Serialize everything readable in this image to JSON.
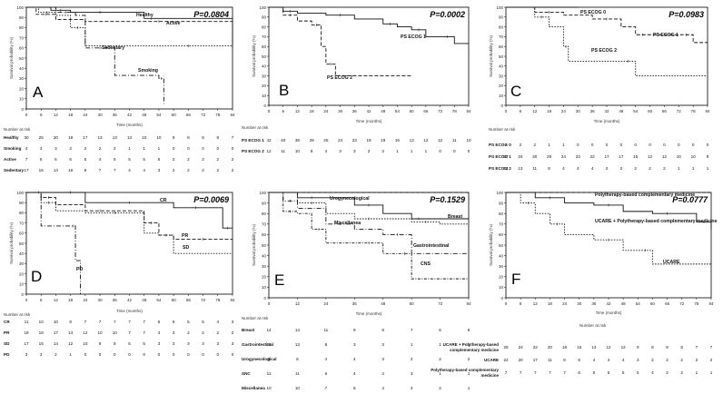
{
  "chart_data": [
    {
      "type": "line",
      "panel": "A",
      "pvalue": "P=0.0804",
      "xlabel": "Time (months)",
      "ylabel": "Survival probability (%)",
      "xlim": [
        0,
        84
      ],
      "ylim": [
        0,
        100
      ],
      "xticks": [
        0,
        6,
        12,
        18,
        24,
        30,
        36,
        42,
        48,
        54,
        60,
        66,
        72,
        78,
        84
      ],
      "yticks": [
        0,
        10,
        20,
        30,
        40,
        50,
        60,
        70,
        80,
        90,
        100
      ],
      "series": [
        {
          "name": "Healthy",
          "style": "solid",
          "x": [
            0,
            10,
            18,
            24,
            36,
            48,
            54,
            84
          ],
          "y": [
            100,
            97,
            95,
            95,
            95,
            89,
            89,
            60
          ]
        },
        {
          "name": "Active",
          "style": "dash",
          "x": [
            0,
            4,
            12,
            24,
            84
          ],
          "y": [
            100,
            93,
            88,
            86,
            86
          ]
        },
        {
          "name": "Sedentary",
          "style": "dot",
          "x": [
            0,
            5,
            12,
            18,
            24,
            48,
            84
          ],
          "y": [
            100,
            95,
            92,
            80,
            62,
            62,
            61
          ]
        },
        {
          "name": "Smoking",
          "style": "dashdot",
          "x": [
            0,
            12,
            20,
            24,
            36,
            54,
            56
          ],
          "y": [
            100,
            95,
            92,
            60,
            33,
            30,
            5
          ]
        }
      ],
      "risk_title": "Number at risk",
      "risk_rows": [
        {
          "label": "Healthy",
          "values": [
            "30",
            "25",
            "20",
            "19",
            "17",
            "13",
            "13",
            "13",
            "10",
            "10",
            "8",
            "8",
            "8",
            "8",
            "7"
          ]
        },
        {
          "label": "Smoking",
          "values": [
            "4",
            "3",
            "3",
            "2",
            "2",
            "2",
            "2",
            "1",
            "1",
            "1",
            "0",
            "0",
            "0",
            "0",
            "0"
          ]
        },
        {
          "label": "Active",
          "values": [
            "7",
            "6",
            "6",
            "6",
            "5",
            "4",
            "5",
            "5",
            "5",
            "5",
            "3",
            "2",
            "2",
            "2",
            "2"
          ]
        },
        {
          "label": "Sedentary",
          "values": [
            "17",
            "16",
            "14",
            "16",
            "8",
            "7",
            "7",
            "4",
            "4",
            "3",
            "2",
            "2",
            "2",
            "2",
            "2"
          ]
        }
      ]
    },
    {
      "type": "line",
      "panel": "B",
      "pvalue": "P=0.0002",
      "xlabel": "Time (months)",
      "ylabel": "Survival probability (%)",
      "xlim": [
        0,
        84
      ],
      "ylim": [
        0,
        100
      ],
      "xticks": [
        0,
        6,
        12,
        18,
        24,
        30,
        36,
        42,
        48,
        54,
        60,
        66,
        72,
        78,
        84
      ],
      "yticks": [
        0,
        10,
        20,
        30,
        40,
        50,
        60,
        70,
        80,
        90,
        100
      ],
      "series": [
        {
          "name": "PS ECOG 1",
          "style": "solid",
          "x": [
            0,
            6,
            12,
            24,
            36,
            48,
            54,
            60,
            66,
            72,
            78,
            84
          ],
          "y": [
            100,
            96,
            94,
            92,
            88,
            83,
            80,
            77,
            70,
            70,
            63,
            63
          ]
        },
        {
          "name": "PS ECOG 2",
          "style": "dash",
          "x": [
            0,
            6,
            12,
            18,
            22,
            24,
            28,
            60
          ],
          "y": [
            100,
            92,
            86,
            82,
            60,
            42,
            30,
            30
          ]
        }
      ],
      "risk_title": "Number at risk",
      "risk_rows": [
        {
          "label": "PS ECOG 1",
          "values": [
            "42",
            "40",
            "36",
            "29",
            "25",
            "24",
            "23",
            "19",
            "19",
            "16",
            "13",
            "12",
            "12",
            "11",
            "10"
          ]
        },
        {
          "label": "PS ECOG 2",
          "values": [
            "12",
            "11",
            "10",
            "8",
            "4",
            "3",
            "3",
            "2",
            "2",
            "1",
            "1",
            "1",
            "0",
            "0",
            "0"
          ]
        }
      ]
    },
    {
      "type": "line",
      "panel": "C",
      "pvalue": "P=0.0983",
      "xlabel": "Time (months)",
      "ylabel": "Survival probability (%)",
      "xlim": [
        0,
        84
      ],
      "ylim": [
        0,
        100
      ],
      "xticks": [
        0,
        6,
        12,
        18,
        24,
        30,
        36,
        42,
        48,
        54,
        60,
        66,
        72,
        78,
        84
      ],
      "yticks": [
        0,
        10,
        20,
        30,
        40,
        50,
        60,
        70,
        80,
        90,
        100
      ],
      "series": [
        {
          "name": "PS ECOG 0",
          "style": "solid",
          "x": [
            0,
            30
          ],
          "y": [
            100,
            100
          ]
        },
        {
          "name": "PS ECOG 1",
          "style": "dash",
          "x": [
            0,
            12,
            24,
            36,
            48,
            54,
            60,
            72,
            78,
            84
          ],
          "y": [
            100,
            95,
            92,
            88,
            80,
            72,
            72,
            72,
            64,
            64
          ]
        },
        {
          "name": "PS ECOG 2",
          "style": "dot",
          "x": [
            0,
            12,
            18,
            24,
            26,
            48,
            54,
            84
          ],
          "y": [
            100,
            90,
            80,
            60,
            45,
            45,
            30,
            30
          ]
        }
      ],
      "risk_title": "Number at risk",
      "risk_rows": [
        {
          "label": "PS ECOG 0",
          "values": [
            "2",
            "2",
            "2",
            "1",
            "1",
            "0",
            "0",
            "0",
            "0",
            "0",
            "0",
            "0",
            "0",
            "0",
            "0"
          ]
        },
        {
          "label": "PS ECOG 1",
          "values": [
            "37",
            "34",
            "30",
            "29",
            "24",
            "23",
            "22",
            "17",
            "17",
            "15",
            "12",
            "12",
            "10",
            "10",
            "9"
          ]
        },
        {
          "label": "PS ECOG 2",
          "values": [
            "14",
            "13",
            "11",
            "8",
            "4",
            "4",
            "4",
            "2",
            "2",
            "2",
            "2",
            "2",
            "1",
            "1",
            "1"
          ]
        }
      ]
    },
    {
      "type": "line",
      "panel": "D",
      "pvalue": "P=0.0069",
      "xlabel": "Time (months)",
      "ylabel": "Survival probability (%)",
      "xlim": [
        0,
        84
      ],
      "ylim": [
        0,
        100
      ],
      "xticks": [
        0,
        6,
        12,
        18,
        24,
        30,
        36,
        42,
        48,
        54,
        60,
        66,
        72,
        78,
        84
      ],
      "yticks": [
        0,
        10,
        20,
        30,
        40,
        50,
        60,
        70,
        80,
        90,
        100
      ],
      "series": [
        {
          "name": "CR",
          "style": "solid",
          "x": [
            0,
            12,
            24,
            36,
            48,
            60,
            78,
            80,
            84
          ],
          "y": [
            100,
            100,
            90,
            90,
            90,
            85,
            85,
            65,
            65
          ]
        },
        {
          "name": "PR",
          "style": "dash",
          "x": [
            0,
            6,
            12,
            24,
            36,
            48,
            54,
            60,
            84
          ],
          "y": [
            100,
            95,
            88,
            82,
            82,
            70,
            58,
            54,
            54
          ]
        },
        {
          "name": "SD",
          "style": "dot",
          "x": [
            0,
            6,
            12,
            24,
            48,
            54,
            60,
            84
          ],
          "y": [
            100,
            90,
            82,
            80,
            60,
            58,
            40,
            40
          ]
        },
        {
          "name": "PD",
          "style": "dashdot",
          "x": [
            0,
            4,
            6,
            18,
            20,
            22
          ],
          "y": [
            100,
            100,
            67,
            67,
            33,
            0
          ]
        }
      ],
      "risk_title": "Number at risk",
      "risk_rows": [
        {
          "label": "CR",
          "values": [
            "11",
            "10",
            "10",
            "8",
            "7",
            "7",
            "7",
            "7",
            "7",
            "6",
            "6",
            "5",
            "5",
            "4",
            "3"
          ]
        },
        {
          "label": "PR",
          "values": [
            "18",
            "18",
            "17",
            "14",
            "12",
            "10",
            "10",
            "7",
            "7",
            "4",
            "3",
            "2",
            "2",
            "2",
            "2"
          ]
        },
        {
          "label": "SD",
          "values": [
            "17",
            "15",
            "14",
            "12",
            "10",
            "9",
            "9",
            "5",
            "5",
            "3",
            "3",
            "3",
            "3",
            "3",
            "3"
          ]
        },
        {
          "label": "PD",
          "values": [
            "3",
            "3",
            "2",
            "1",
            "0",
            "0",
            "0",
            "0",
            "0",
            "0",
            "0",
            "0",
            "0",
            "0",
            "0"
          ]
        }
      ]
    },
    {
      "type": "line",
      "panel": "E",
      "pvalue": "P=0.1529",
      "xlabel": "Time (months)",
      "ylabel": "Survival probability (%)",
      "xlim": [
        0,
        84
      ],
      "ylim": [
        0,
        100
      ],
      "xticks": [
        0,
        12,
        24,
        36,
        48,
        60,
        72,
        84
      ],
      "yticks": [
        0,
        10,
        20,
        30,
        40,
        50,
        60,
        70,
        80,
        90,
        100
      ],
      "series": [
        {
          "name": "Urogynecological",
          "style": "dash",
          "x": [
            0,
            84
          ],
          "y": [
            100,
            100
          ]
        },
        {
          "name": "Breast",
          "style": "solid",
          "x": [
            0,
            12,
            24,
            36,
            48,
            60,
            66,
            84
          ],
          "y": [
            100,
            95,
            95,
            88,
            80,
            75,
            75,
            75
          ]
        },
        {
          "name": "Miscellanea",
          "style": "dot",
          "x": [
            0,
            12,
            24,
            36,
            48,
            60,
            72,
            84
          ],
          "y": [
            100,
            90,
            80,
            75,
            75,
            72,
            70,
            70
          ]
        },
        {
          "name": "Gastrointestinal",
          "style": "dashdot",
          "x": [
            0,
            6,
            12,
            24,
            36,
            48,
            60,
            84
          ],
          "y": [
            100,
            92,
            85,
            70,
            65,
            60,
            42,
            42
          ]
        },
        {
          "name": "CNS",
          "style": "dashdot2",
          "x": [
            0,
            6,
            12,
            18,
            24,
            36,
            48,
            54,
            60,
            84
          ],
          "y": [
            100,
            82,
            80,
            65,
            52,
            52,
            42,
            42,
            18,
            18
          ]
        }
      ],
      "risk_title": "Number at risk",
      "risk_rows": [
        {
          "label": "Breast",
          "values": [
            "14",
            "14",
            "11",
            "9",
            "8",
            "7",
            "6",
            "5"
          ]
        },
        {
          "label": "Gastrointestinal",
          "values": [
            "13",
            "13",
            "8",
            "3",
            "3",
            "1",
            "1",
            "1"
          ]
        },
        {
          "label": "Urogynecological",
          "values": [
            "6",
            "6",
            "4",
            "4",
            "3",
            "2",
            "2",
            "2"
          ]
        },
        {
          "label": "SNC",
          "values": [
            "11",
            "11",
            "6",
            "4",
            "4",
            "3",
            "1",
            "1"
          ]
        },
        {
          "label": "Miscellanea",
          "values": [
            "10",
            "10",
            "7",
            "6",
            "4",
            "3",
            "2",
            "1"
          ]
        }
      ]
    },
    {
      "type": "line",
      "panel": "F",
      "pvalue": "P=0.0777",
      "xlabel": "Time (months)",
      "ylabel": "Survival probability (%)",
      "xlim": [
        0,
        84
      ],
      "ylim": [
        0,
        100
      ],
      "xticks": [
        0,
        6,
        12,
        18,
        24,
        30,
        36,
        42,
        48,
        54,
        60,
        66,
        72,
        78,
        84
      ],
      "yticks": [
        0,
        10,
        20,
        30,
        40,
        50,
        60,
        70,
        80,
        90,
        100
      ],
      "series": [
        {
          "name": "Polytherapy-based complementary medicine",
          "style": "dash",
          "x": [
            0,
            84
          ],
          "y": [
            100,
            100
          ]
        },
        {
          "name": "UCARE + Polytherapy-based complementary medicine",
          "style": "solid",
          "x": [
            0,
            12,
            24,
            36,
            48,
            60,
            72,
            78,
            84
          ],
          "y": [
            100,
            95,
            90,
            88,
            82,
            80,
            80,
            72,
            65
          ]
        },
        {
          "name": "UCARE",
          "style": "dot",
          "x": [
            0,
            6,
            12,
            18,
            24,
            36,
            48,
            54,
            60,
            84
          ],
          "y": [
            100,
            90,
            80,
            70,
            60,
            55,
            45,
            45,
            32,
            32
          ]
        }
      ],
      "risk_title": "Number at risk",
      "risk_rows": [
        {
          "label": "UCARE + Polytherapy-based complementary medicine",
          "values": [
            "25",
            "24",
            "22",
            "20",
            "16",
            "15",
            "13",
            "12",
            "12",
            "9",
            "8",
            "8",
            "8",
            "7",
            "7"
          ]
        },
        {
          "label": "UCARE",
          "values": [
            "22",
            "20",
            "17",
            "11",
            "8",
            "6",
            "4",
            "4",
            "4",
            "3",
            "2",
            "2",
            "2",
            "2",
            "2"
          ]
        },
        {
          "label": "Polytherapy-based complementary medicine",
          "values": [
            "7",
            "7",
            "7",
            "7",
            "7",
            "6",
            "5",
            "5",
            "5",
            "5",
            "4",
            "2",
            "2",
            "1",
            "1"
          ]
        }
      ]
    }
  ]
}
